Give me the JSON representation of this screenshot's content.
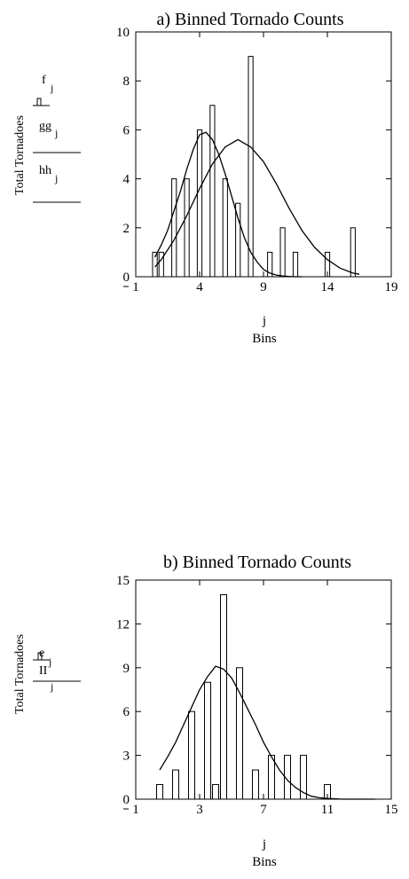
{
  "chart_data": [
    {
      "type": "bar",
      "title": "a) Binned Tornado Counts",
      "ylabel": "Total Tornadoes",
      "xlabel_var": "j",
      "xlabel": "Bins",
      "xlim": [
        -1,
        19
      ],
      "ylim": [
        0,
        10
      ],
      "x_ticks": [
        "-1",
        "4",
        "9",
        "14",
        "19"
      ],
      "y_ticks": [
        "0",
        "2",
        "4",
        "6",
        "8",
        "10"
      ],
      "legend": [
        {
          "name": "f",
          "sub": "j",
          "style": "bars"
        },
        {
          "name": "gg",
          "sub": "j",
          "style": "line"
        },
        {
          "name": "hh",
          "sub": "j",
          "style": "line"
        }
      ],
      "series": [
        {
          "name": "f",
          "kind": "bars",
          "x": [
            0.5,
            1,
            1.5,
            2,
            2.5,
            3,
            3.5,
            4,
            4.5,
            5,
            5.5,
            6,
            6.5,
            7,
            7.5,
            8,
            8.5,
            9,
            9.5,
            10,
            10.5,
            11,
            11.5,
            12,
            12.5,
            13,
            13.5,
            14,
            14.5,
            15,
            15.5,
            16,
            16.5
          ],
          "values": [
            1,
            1,
            0,
            4,
            0,
            4,
            0,
            6,
            0,
            7,
            0,
            4,
            0,
            3,
            0,
            9,
            0,
            0,
            1,
            0,
            2,
            0,
            1,
            0,
            0,
            0,
            0,
            1,
            0,
            0,
            0,
            2,
            0
          ]
        },
        {
          "name": "gg",
          "kind": "line",
          "x": [
            0.5,
            1,
            1.5,
            2,
            2.5,
            3,
            3.5,
            4,
            4.5,
            5,
            5.5,
            6,
            6.5,
            7,
            7.5,
            8,
            8.5,
            9,
            9.5,
            10,
            10.5,
            11,
            11.5,
            12
          ],
          "values": [
            0.8,
            1.3,
            1.9,
            2.7,
            3.5,
            4.4,
            5.2,
            5.8,
            5.9,
            5.6,
            5.0,
            4.2,
            3.3,
            2.4,
            1.6,
            1.0,
            0.6,
            0.3,
            0.15,
            0.07,
            0.03,
            0.01,
            0.0,
            0.0
          ]
        },
        {
          "name": "hh",
          "kind": "line",
          "x": [
            0.5,
            1,
            2,
            3,
            4,
            5,
            6,
            7,
            8,
            9,
            10,
            11,
            12,
            13,
            14,
            15,
            16,
            16.5
          ],
          "values": [
            0.4,
            0.7,
            1.5,
            2.5,
            3.6,
            4.6,
            5.3,
            5.6,
            5.3,
            4.7,
            3.8,
            2.8,
            1.9,
            1.2,
            0.7,
            0.35,
            0.15,
            0.1
          ]
        }
      ]
    },
    {
      "type": "bar",
      "title": "b) Binned Tornado Counts",
      "ylabel": "Total Tornadoes",
      "xlabel_var": "j",
      "xlabel": "Bins",
      "xlim": [
        -1,
        15
      ],
      "ylim": [
        0,
        15
      ],
      "x_ticks": [
        "-1",
        "3",
        "7",
        "11",
        "15"
      ],
      "y_ticks": [
        "0",
        "3",
        "6",
        "9",
        "12",
        "15"
      ],
      "legend": [
        {
          "name": "e",
          "sub": "j",
          "style": "bars"
        },
        {
          "name": "II",
          "sub": "j",
          "style": "line"
        }
      ],
      "series": [
        {
          "name": "e",
          "kind": "bars",
          "x": [
            0.5,
            1,
            1.5,
            2,
            2.5,
            3,
            3.5,
            4,
            4.5,
            5,
            5.5,
            6,
            6.5,
            7,
            7.5,
            8,
            8.5,
            9,
            9.5,
            10,
            10.5,
            11
          ],
          "values": [
            1,
            0,
            2,
            0,
            6,
            0,
            8,
            1,
            14,
            0,
            9,
            0,
            2,
            0,
            3,
            0,
            3,
            0,
            3,
            0,
            0,
            1
          ]
        },
        {
          "name": "II",
          "kind": "line",
          "x": [
            0.5,
            1,
            1.5,
            2,
            2.5,
            3,
            3.5,
            4,
            4.5,
            5,
            5.5,
            6,
            6.5,
            7,
            7.5,
            8,
            8.5,
            9,
            9.5,
            10,
            10.5,
            11,
            12,
            13,
            14
          ],
          "values": [
            2.0,
            2.9,
            3.9,
            5.1,
            6.3,
            7.5,
            8.4,
            9.1,
            8.9,
            8.3,
            7.3,
            6.2,
            5.1,
            3.9,
            2.9,
            2.0,
            1.3,
            0.8,
            0.45,
            0.2,
            0.1,
            0.05,
            0.0,
            0.0,
            0.0
          ]
        }
      ]
    }
  ]
}
